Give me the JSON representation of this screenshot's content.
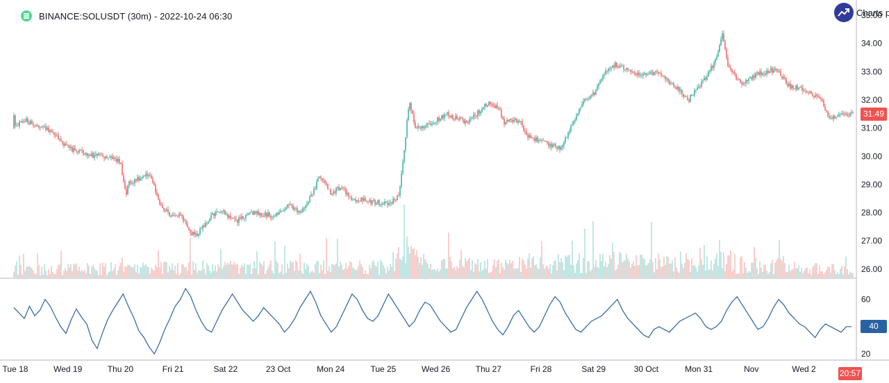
{
  "header": {
    "title": "BINANCE:SOLUSDT (30m) - 2022-10-24 06:30",
    "status_icon": "live-status-icon"
  },
  "brand": {
    "label": "Charts p",
    "icon": "trend-arrow-icon"
  },
  "colors": {
    "up": "#26a69a",
    "down": "#ef5350",
    "vol_up": "#a5ddd8",
    "vol_down": "#f7b8b6",
    "rsi_line": "#2962a1",
    "axis_border": "#b2b5be",
    "brand_bg": "#2f3c9c"
  },
  "price_axis": {
    "ticks": [
      "35.00",
      "34.00",
      "33.00",
      "32.00",
      "31.00",
      "30.00",
      "29.00",
      "28.00",
      "27.00",
      "26.00"
    ]
  },
  "rsi_axis": {
    "ticks": [
      "60",
      "40",
      "20"
    ]
  },
  "time_axis": {
    "ticks": [
      "Tue 18",
      "Wed 19",
      "Thu 20",
      "Fri 21",
      "Sat 22",
      "23 Oct",
      "Mon 24",
      "Tue 25",
      "Wed 26",
      "Thu 27",
      "Fri 28",
      "Sat 29",
      "30 Oct",
      "Mon 31",
      "Nov",
      "Wed 2"
    ]
  },
  "last_price_label": "31.49",
  "last_rsi_label": "40",
  "cursor_time_label": "20:57",
  "chart_data": [
    {
      "type": "candlestick",
      "title": "BINANCE:SOLUSDT (30m) - 2022-10-24 06:30",
      "x": [
        "Tue 18",
        "Wed 19",
        "Thu 20",
        "Fri 21",
        "Sat 22",
        "23 Oct",
        "Mon 24",
        "Tue 25",
        "Wed 26",
        "Thu 27",
        "Fri 28",
        "Sat 29",
        "30 Oct",
        "Mon 31",
        "Nov",
        "Wed 2"
      ],
      "close_path": [
        [
          0,
          31.0
        ],
        [
          0.15,
          31.3
        ],
        [
          0.4,
          31.1
        ],
        [
          0.7,
          30.9
        ],
        [
          1.0,
          30.3
        ],
        [
          1.4,
          30.05
        ],
        [
          1.8,
          29.95
        ],
        [
          2.0,
          29.8
        ],
        [
          2.1,
          28.6
        ],
        [
          2.15,
          29.05
        ],
        [
          2.5,
          29.35
        ],
        [
          2.6,
          29.2
        ],
        [
          2.75,
          28.3
        ],
        [
          3.0,
          27.8
        ],
        [
          3.15,
          27.9
        ],
        [
          3.3,
          27.35
        ],
        [
          3.45,
          27.2
        ],
        [
          3.7,
          27.85
        ],
        [
          3.9,
          28.1
        ],
        [
          4.2,
          27.7
        ],
        [
          4.5,
          28.0
        ],
        [
          4.9,
          27.9
        ],
        [
          5.2,
          28.25
        ],
        [
          5.45,
          28.0
        ],
        [
          5.6,
          28.5
        ],
        [
          5.8,
          29.3
        ],
        [
          6.0,
          28.7
        ],
        [
          6.2,
          28.9
        ],
        [
          6.4,
          28.5
        ],
        [
          6.8,
          28.4
        ],
        [
          7.1,
          28.3
        ],
        [
          7.3,
          28.6
        ],
        [
          7.45,
          31.2
        ],
        [
          7.5,
          32.0
        ],
        [
          7.6,
          31.0
        ],
        [
          7.9,
          31.15
        ],
        [
          8.2,
          31.5
        ],
        [
          8.6,
          31.2
        ],
        [
          9.0,
          31.9
        ],
        [
          9.2,
          31.7
        ],
        [
          9.3,
          31.2
        ],
        [
          9.6,
          31.3
        ],
        [
          9.7,
          30.8
        ],
        [
          10.0,
          30.5
        ],
        [
          10.4,
          30.3
        ],
        [
          10.55,
          31.0
        ],
        [
          10.8,
          31.9
        ],
        [
          11.0,
          32.2
        ],
        [
          11.2,
          33.0
        ],
        [
          11.4,
          33.25
        ],
        [
          11.8,
          32.9
        ],
        [
          12.2,
          32.95
        ],
        [
          12.55,
          32.5
        ],
        [
          12.8,
          32.0
        ],
        [
          13.1,
          32.7
        ],
        [
          13.3,
          33.3
        ],
        [
          13.45,
          34.3
        ],
        [
          13.55,
          33.2
        ],
        [
          13.8,
          32.6
        ],
        [
          14.1,
          32.9
        ],
        [
          14.5,
          33.1
        ],
        [
          14.7,
          32.5
        ],
        [
          15.1,
          32.3
        ],
        [
          15.35,
          31.9
        ],
        [
          15.5,
          31.3
        ],
        [
          15.75,
          31.49
        ]
      ],
      "volume_path": [
        [
          0,
          0.25
        ],
        [
          3.5,
          0.35
        ],
        [
          7.2,
          0.35
        ],
        [
          7.45,
          1.0
        ],
        [
          7.8,
          0.45
        ],
        [
          9.5,
          0.4
        ],
        [
          10.6,
          0.55
        ],
        [
          13.5,
          0.5
        ],
        [
          15.75,
          0.25
        ]
      ],
      "ylim": [
        25.7,
        35.1
      ]
    },
    {
      "type": "line",
      "title": "",
      "series": [
        {
          "name": "",
          "values": [
            54,
            50,
            46,
            55,
            48,
            52,
            60,
            55,
            47,
            40,
            35,
            45,
            53,
            47,
            42,
            30,
            24,
            35,
            45,
            52,
            58,
            64,
            55,
            47,
            37,
            32,
            25,
            20,
            28,
            38,
            46,
            55,
            60,
            68,
            62,
            52,
            44,
            38,
            36,
            44,
            52,
            58,
            64,
            58,
            52,
            48,
            44,
            48,
            54,
            50,
            46,
            42,
            36,
            40,
            46,
            54,
            60,
            66,
            58,
            48,
            42,
            36,
            40,
            48,
            56,
            64,
            60,
            52,
            46,
            44,
            48,
            56,
            64,
            58,
            52,
            46,
            40,
            44,
            52,
            58,
            56,
            50,
            44,
            40,
            36,
            38,
            46,
            54,
            60,
            66,
            60,
            52,
            44,
            38,
            34,
            40,
            48,
            52,
            46,
            40,
            36,
            40,
            48,
            56,
            62,
            58,
            50,
            44,
            38,
            36,
            40,
            44,
            46,
            48,
            52,
            56,
            60,
            52,
            46,
            42,
            38,
            34,
            32,
            38,
            40,
            38,
            36,
            40,
            44,
            46,
            48,
            50,
            46,
            40,
            38,
            40,
            44,
            52,
            58,
            62,
            56,
            50,
            44,
            38,
            40,
            46,
            54,
            60,
            56,
            50,
            46,
            42,
            40,
            36,
            32,
            38,
            42,
            40,
            38,
            36,
            40,
            40
          ]
        }
      ],
      "ylim": [
        17,
        73
      ]
    }
  ]
}
